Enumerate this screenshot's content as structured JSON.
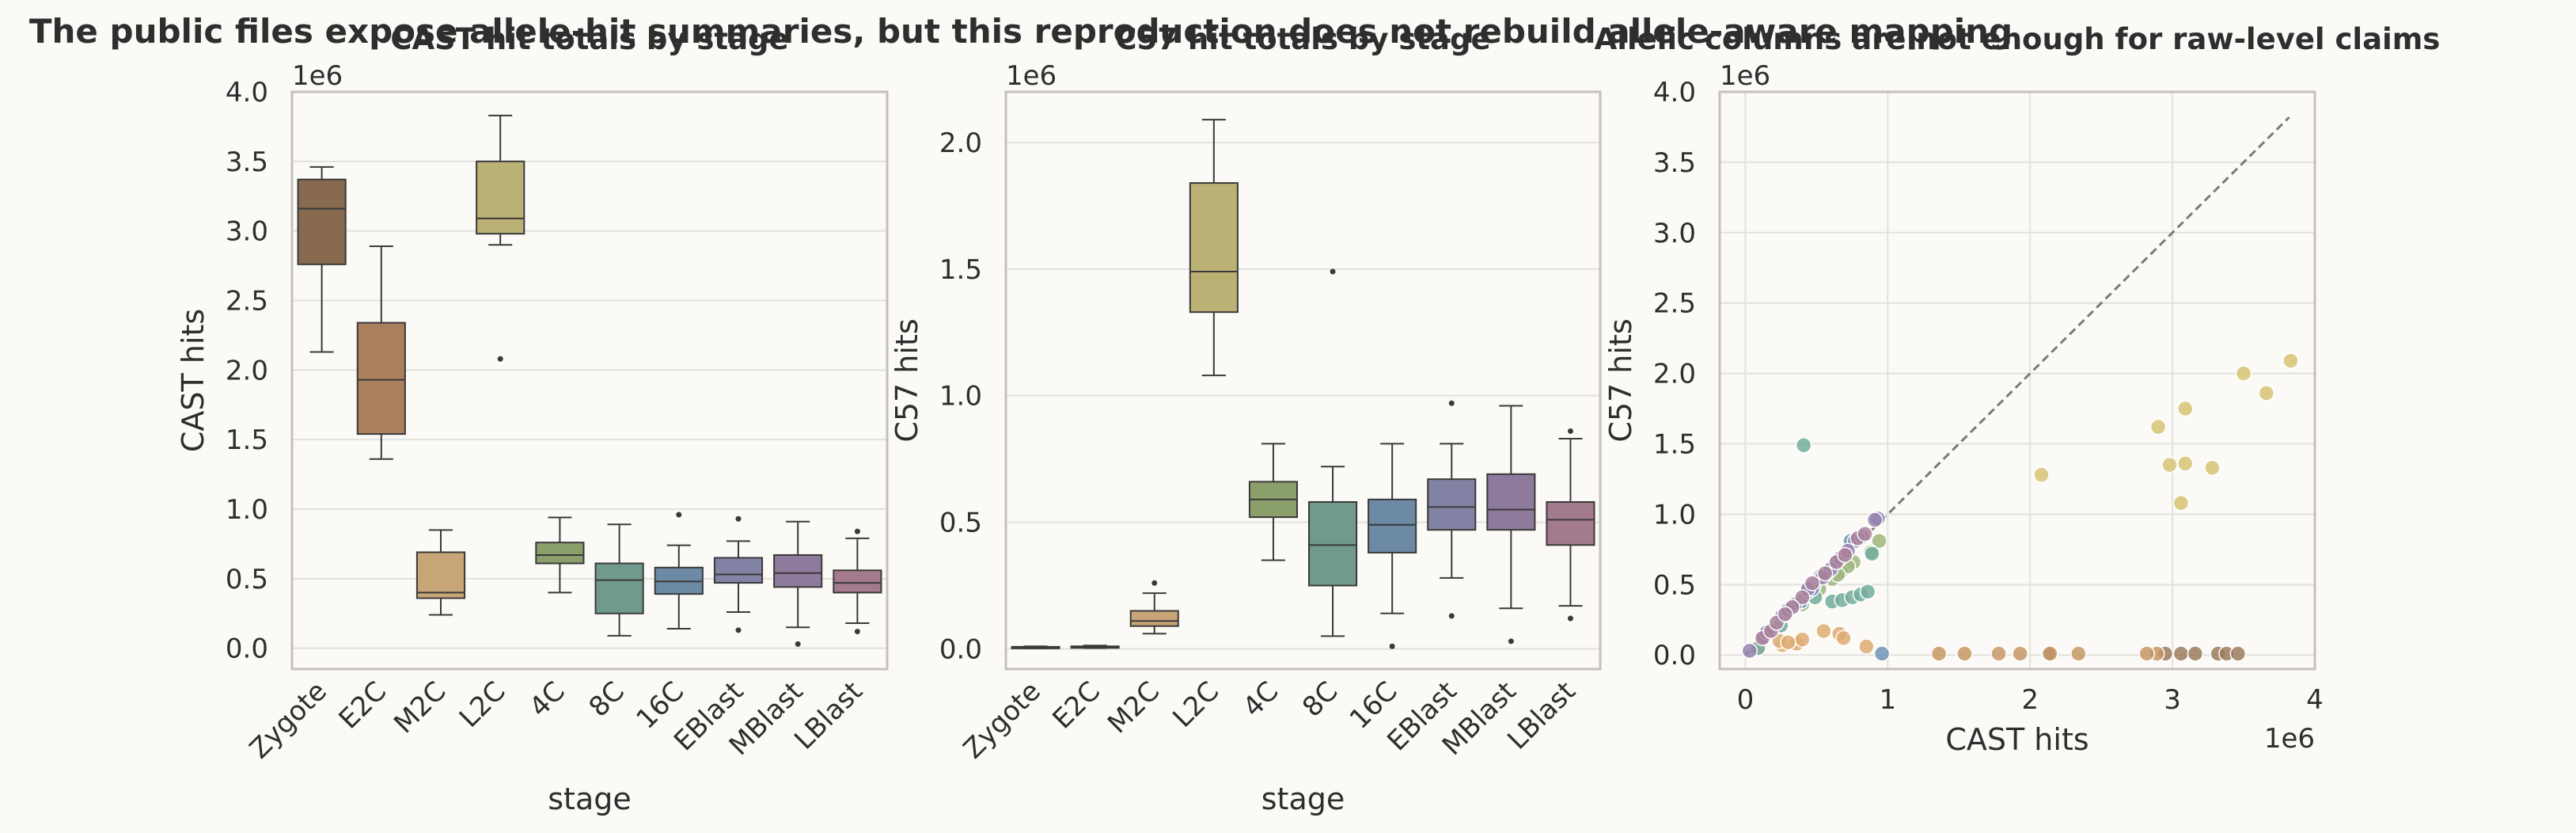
{
  "figure": {
    "suptitle": "The public files expose allele-hit summaries, but this reproduction does not rebuild allele-aware mapping"
  },
  "palette": {
    "background": "#fbfaf7",
    "grid": "#e3e1dc",
    "spine": "#c4c1ba",
    "text": "#2e2e2e",
    "box_edge": "#3a3a3a",
    "stage_colors": [
      "#876a50",
      "#a97f5c",
      "#c7a576",
      "#bcb174",
      "#8b9f6b",
      "#6f9a8d",
      "#6c8aa3",
      "#8283a4",
      "#8e7a9c",
      "#a47a8d"
    ],
    "scatter_colors": [
      "#9b7b5e",
      "#c69664",
      "#deab73",
      "#d6c374",
      "#9fb67e",
      "#72ab9c",
      "#6f93b5",
      "#8b8bb6",
      "#9583ad",
      "#a8819b"
    ],
    "diagonal": "#7a7a7a"
  },
  "chart_data": [
    {
      "type": "box",
      "title": "CAST hit totals by stage",
      "xlabel": "stage",
      "ylabel": "CAST hits",
      "offset_label": "1e6",
      "scale": 1000000,
      "ylim": [
        -0.15,
        4.0
      ],
      "yticks": [
        0.0,
        0.5,
        1.0,
        1.5,
        2.0,
        2.5,
        3.0,
        3.5,
        4.0
      ],
      "ytick_labels": [
        "0.0",
        "0.5",
        "1.0",
        "1.5",
        "2.0",
        "2.5",
        "3.0",
        "3.5",
        "4.0"
      ],
      "grid": true,
      "categories": [
        "Zygote",
        "E2C",
        "M2C",
        "L2C",
        "4C",
        "8C",
        "16C",
        "EBlast",
        "MBlast",
        "LBlast"
      ],
      "boxes": [
        {
          "q1": 2.76,
          "median": 3.16,
          "q3": 3.37,
          "whislo": 2.13,
          "whishi": 3.46,
          "fliers": []
        },
        {
          "q1": 1.54,
          "median": 1.93,
          "q3": 2.34,
          "whislo": 1.36,
          "whishi": 2.89,
          "fliers": []
        },
        {
          "q1": 0.36,
          "median": 0.4,
          "q3": 0.69,
          "whislo": 0.24,
          "whishi": 0.85,
          "fliers": []
        },
        {
          "q1": 2.98,
          "median": 3.09,
          "q3": 3.5,
          "whislo": 2.9,
          "whishi": 3.83,
          "fliers": [
            2.08
          ]
        },
        {
          "q1": 0.61,
          "median": 0.67,
          "q3": 0.76,
          "whislo": 0.4,
          "whishi": 0.94,
          "fliers": []
        },
        {
          "q1": 0.25,
          "median": 0.49,
          "q3": 0.61,
          "whislo": 0.09,
          "whishi": 0.89,
          "fliers": []
        },
        {
          "q1": 0.39,
          "median": 0.48,
          "q3": 0.58,
          "whislo": 0.14,
          "whishi": 0.74,
          "fliers": [
            0.96
          ]
        },
        {
          "q1": 0.47,
          "median": 0.53,
          "q3": 0.65,
          "whislo": 0.26,
          "whishi": 0.77,
          "fliers": [
            0.13,
            0.93
          ]
        },
        {
          "q1": 0.44,
          "median": 0.54,
          "q3": 0.67,
          "whislo": 0.15,
          "whishi": 0.91,
          "fliers": [
            0.03
          ]
        },
        {
          "q1": 0.4,
          "median": 0.47,
          "q3": 0.56,
          "whislo": 0.18,
          "whishi": 0.79,
          "fliers": [
            0.12,
            0.84
          ]
        }
      ]
    },
    {
      "type": "box",
      "title": "C57 hit totals by stage",
      "xlabel": "stage",
      "ylabel": "C57 hits",
      "offset_label": "1e6",
      "scale": 1000000,
      "ylim": [
        -0.08,
        2.2
      ],
      "yticks": [
        0.0,
        0.5,
        1.0,
        1.5,
        2.0
      ],
      "ytick_labels": [
        "0.0",
        "0.5",
        "1.0",
        "1.5",
        "2.0"
      ],
      "grid": true,
      "categories": [
        "Zygote",
        "E2C",
        "M2C",
        "L2C",
        "4C",
        "8C",
        "16C",
        "EBlast",
        "MBlast",
        "LBlast"
      ],
      "boxes": [
        {
          "q1": 0.004,
          "median": 0.006,
          "q3": 0.008,
          "whislo": 0.002,
          "whishi": 0.01,
          "fliers": []
        },
        {
          "q1": 0.005,
          "median": 0.007,
          "q3": 0.01,
          "whislo": 0.003,
          "whishi": 0.013,
          "fliers": []
        },
        {
          "q1": 0.09,
          "median": 0.11,
          "q3": 0.15,
          "whislo": 0.06,
          "whishi": 0.22,
          "fliers": [
            0.26
          ]
        },
        {
          "q1": 1.33,
          "median": 1.49,
          "q3": 1.84,
          "whislo": 1.08,
          "whishi": 2.09,
          "fliers": []
        },
        {
          "q1": 0.52,
          "median": 0.59,
          "q3": 0.66,
          "whislo": 0.35,
          "whishi": 0.81,
          "fliers": []
        },
        {
          "q1": 0.25,
          "median": 0.41,
          "q3": 0.58,
          "whislo": 0.05,
          "whishi": 0.72,
          "fliers": [
            1.49
          ]
        },
        {
          "q1": 0.38,
          "median": 0.49,
          "q3": 0.59,
          "whislo": 0.14,
          "whishi": 0.81,
          "fliers": [
            0.01
          ]
        },
        {
          "q1": 0.47,
          "median": 0.56,
          "q3": 0.67,
          "whislo": 0.28,
          "whishi": 0.81,
          "fliers": [
            0.13,
            0.97
          ]
        },
        {
          "q1": 0.47,
          "median": 0.55,
          "q3": 0.69,
          "whislo": 0.16,
          "whishi": 0.96,
          "fliers": [
            0.03
          ]
        },
        {
          "q1": 0.41,
          "median": 0.51,
          "q3": 0.58,
          "whislo": 0.17,
          "whishi": 0.83,
          "fliers": [
            0.12,
            0.86
          ]
        }
      ]
    },
    {
      "type": "scatter",
      "title": "Allelic columns are not enough for raw-level claims",
      "xlabel": "CAST hits",
      "ylabel": "C57 hits",
      "x_offset_label": "1e6",
      "y_offset_label": "1e6",
      "scale": 1000000,
      "xlim": [
        -0.18,
        4.0
      ],
      "ylim": [
        -0.1,
        4.0
      ],
      "xticks": [
        0,
        1,
        2,
        3,
        4
      ],
      "xtick_labels": [
        "0",
        "1",
        "2",
        "3",
        "4"
      ],
      "yticks": [
        0.0,
        0.5,
        1.0,
        1.5,
        2.0,
        2.5,
        3.0,
        3.5,
        4.0
      ],
      "ytick_labels": [
        "0.0",
        "0.5",
        "1.0",
        "1.5",
        "2.0",
        "2.5",
        "3.0",
        "3.5",
        "4.0"
      ],
      "grid": true,
      "reference_line": {
        "x": [
          0,
          3.82
        ],
        "y": [
          0,
          3.82
        ],
        "style": "dashed"
      },
      "series": [
        {
          "stage_index": 0,
          "points": [
            [
              2.95,
              0.01
            ],
            [
              3.06,
              0.01
            ],
            [
              3.16,
              0.01
            ],
            [
              3.32,
              0.01
            ],
            [
              3.38,
              0.01
            ],
            [
              3.46,
              0.01
            ],
            [
              2.13,
              0.01
            ]
          ]
        },
        {
          "stage_index": 1,
          "points": [
            [
              1.36,
              0.01
            ],
            [
              1.54,
              0.01
            ],
            [
              1.78,
              0.01
            ],
            [
              1.93,
              0.01
            ],
            [
              2.14,
              0.01
            ],
            [
              2.34,
              0.01
            ],
            [
              2.89,
              0.01
            ],
            [
              2.82,
              0.01
            ]
          ]
        },
        {
          "stage_index": 2,
          "points": [
            [
              0.08,
              0.04
            ],
            [
              0.26,
              0.07
            ],
            [
              0.36,
              0.08
            ],
            [
              0.4,
              0.11
            ],
            [
              0.55,
              0.17
            ],
            [
              0.66,
              0.15
            ],
            [
              0.69,
              0.12
            ],
            [
              0.85,
              0.06
            ],
            [
              0.24,
              0.1
            ],
            [
              0.3,
              0.09
            ]
          ]
        },
        {
          "stage_index": 3,
          "points": [
            [
              2.08,
              1.28
            ],
            [
              2.9,
              1.62
            ],
            [
              2.98,
              1.35
            ],
            [
              3.09,
              1.36
            ],
            [
              3.06,
              1.08
            ],
            [
              3.09,
              1.75
            ],
            [
              3.5,
              2.0
            ],
            [
              3.66,
              1.86
            ],
            [
              3.83,
              2.09
            ],
            [
              3.28,
              1.33
            ]
          ]
        },
        {
          "stage_index": 4,
          "points": [
            [
              0.4,
              0.36
            ],
            [
              0.61,
              0.54
            ],
            [
              0.67,
              0.59
            ],
            [
              0.76,
              0.66
            ],
            [
              0.94,
              0.81
            ],
            [
              0.72,
              0.63
            ],
            [
              0.65,
              0.57
            ],
            [
              0.88,
              0.73
            ],
            [
              0.52,
              0.47
            ]
          ]
        },
        {
          "stage_index": 5,
          "points": [
            [
              0.41,
              1.49
            ],
            [
              0.61,
              0.38
            ],
            [
              0.68,
              0.39
            ],
            [
              0.75,
              0.41
            ],
            [
              0.81,
              0.43
            ],
            [
              0.86,
              0.45
            ],
            [
              0.89,
              0.72
            ],
            [
              0.09,
              0.05
            ],
            [
              0.49,
              0.41
            ],
            [
              0.25,
              0.21
            ]
          ]
        },
        {
          "stage_index": 6,
          "points": [
            [
              0.96,
              0.01
            ],
            [
              0.14,
              0.14
            ],
            [
              0.39,
              0.38
            ],
            [
              0.48,
              0.49
            ],
            [
              0.58,
              0.59
            ],
            [
              0.74,
              0.81
            ],
            [
              0.55,
              0.56
            ],
            [
              0.44,
              0.45
            ]
          ]
        },
        {
          "stage_index": 7,
          "points": [
            [
              0.13,
              0.13
            ],
            [
              0.26,
              0.28
            ],
            [
              0.47,
              0.47
            ],
            [
              0.53,
              0.56
            ],
            [
              0.65,
              0.67
            ],
            [
              0.77,
              0.81
            ],
            [
              0.93,
              0.97
            ],
            [
              0.6,
              0.61
            ],
            [
              0.35,
              0.36
            ]
          ]
        },
        {
          "stage_index": 8,
          "points": [
            [
              0.03,
              0.03
            ],
            [
              0.15,
              0.16
            ],
            [
              0.44,
              0.47
            ],
            [
              0.54,
              0.55
            ],
            [
              0.67,
              0.69
            ],
            [
              0.91,
              0.96
            ],
            [
              0.72,
              0.74
            ],
            [
              0.3,
              0.32
            ],
            [
              0.82,
              0.84
            ]
          ]
        },
        {
          "stage_index": 9,
          "points": [
            [
              0.12,
              0.12
            ],
            [
              0.18,
              0.17
            ],
            [
              0.4,
              0.41
            ],
            [
              0.47,
              0.51
            ],
            [
              0.56,
              0.58
            ],
            [
              0.79,
              0.83
            ],
            [
              0.84,
              0.86
            ],
            [
              0.22,
              0.23
            ],
            [
              0.33,
              0.34
            ],
            [
              0.64,
              0.66
            ],
            [
              0.7,
              0.71
            ],
            [
              0.28,
              0.29
            ]
          ]
        }
      ]
    }
  ]
}
